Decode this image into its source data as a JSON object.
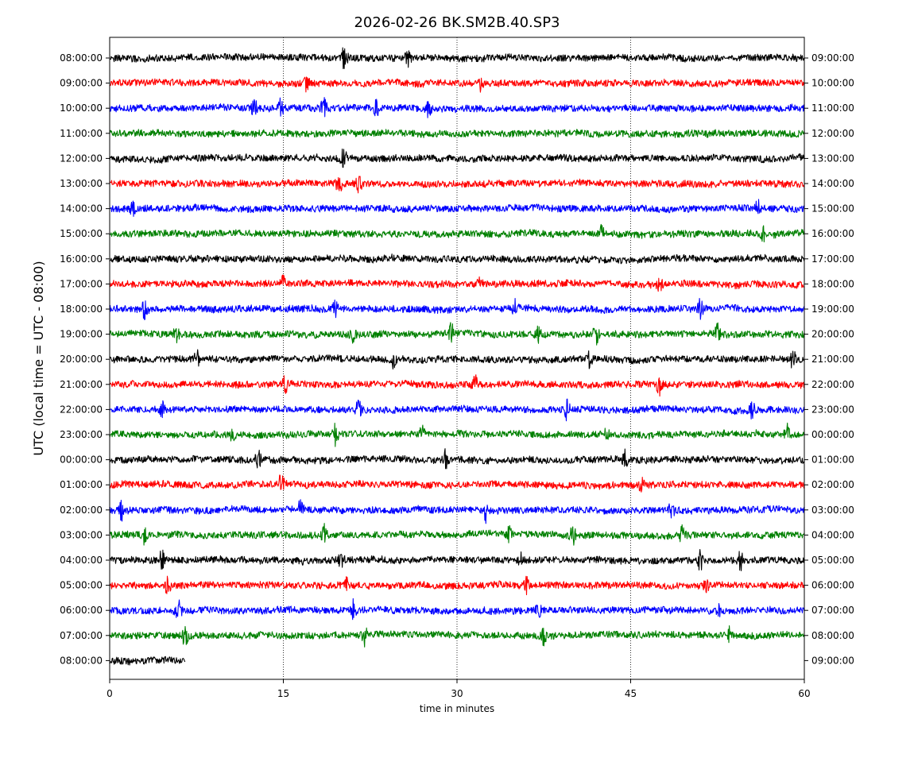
{
  "chart_data": {
    "type": "line",
    "title": "2026-02-26 BK.SM2B.40.SP3",
    "xlabel": "time in minutes",
    "ylabel": "UTC (local time = UTC - 08:00)",
    "xlim": [
      0,
      60
    ],
    "x_ticks": [
      0,
      15,
      30,
      45,
      60
    ],
    "x_tick_labels": [
      "0",
      "15",
      "30",
      "45",
      "60"
    ],
    "grid": "vertical dotted lines at 15, 30, 45 minutes",
    "colors": [
      "#000000",
      "#ff0000",
      "#0000ff",
      "#008000"
    ],
    "left_tick_labels": [
      "08:00:00",
      "09:00:00",
      "10:00:00",
      "11:00:00",
      "12:00:00",
      "13:00:00",
      "14:00:00",
      "15:00:00",
      "16:00:00",
      "17:00:00",
      "18:00:00",
      "19:00:00",
      "20:00:00",
      "21:00:00",
      "22:00:00",
      "23:00:00",
      "00:00:00",
      "01:00:00",
      "02:00:00",
      "03:00:00",
      "04:00:00",
      "05:00:00",
      "06:00:00",
      "07:00:00",
      "08:00:00"
    ],
    "right_tick_labels": [
      "09:00:00",
      "10:00:00",
      "11:00:00",
      "12:00:00",
      "13:00:00",
      "14:00:00",
      "15:00:00",
      "16:00:00",
      "17:00:00",
      "18:00:00",
      "19:00:00",
      "20:00:00",
      "21:00:00",
      "22:00:00",
      "23:00:00",
      "00:00:00",
      "01:00:00",
      "02:00:00",
      "03:00:00",
      "04:00:00",
      "05:00:00",
      "06:00:00",
      "07:00:00",
      "08:00:00",
      "09:00:00"
    ],
    "series": [
      {
        "hour": "08:00:00",
        "color": "#000000",
        "end_minute": 60,
        "events": [
          [
            20.3,
            3
          ],
          [
            25.8,
            2
          ]
        ]
      },
      {
        "hour": "09:00:00",
        "color": "#ff0000",
        "end_minute": 60,
        "events": [
          [
            17,
            1.5
          ],
          [
            32,
            1.5
          ]
        ]
      },
      {
        "hour": "10:00:00",
        "color": "#0000ff",
        "end_minute": 60,
        "events": [
          [
            12.5,
            2
          ],
          [
            14.8,
            2
          ],
          [
            18.5,
            2
          ],
          [
            23,
            1.5
          ],
          [
            27.5,
            1.5
          ]
        ]
      },
      {
        "hour": "11:00:00",
        "color": "#008000",
        "end_minute": 60,
        "events": []
      },
      {
        "hour": "12:00:00",
        "color": "#000000",
        "end_minute": 60,
        "events": [
          [
            20.2,
            2
          ]
        ]
      },
      {
        "hour": "13:00:00",
        "color": "#ff0000",
        "end_minute": 60,
        "events": [
          [
            19.8,
            2
          ],
          [
            21.5,
            2
          ]
        ]
      },
      {
        "hour": "14:00:00",
        "color": "#0000ff",
        "end_minute": 60,
        "events": [
          [
            2,
            1.5
          ],
          [
            56,
            1.5
          ]
        ]
      },
      {
        "hour": "15:00:00",
        "color": "#008000",
        "end_minute": 60,
        "events": [
          [
            42.5,
            1.5
          ],
          [
            56.5,
            1.5
          ]
        ]
      },
      {
        "hour": "16:00:00",
        "color": "#000000",
        "end_minute": 60,
        "events": []
      },
      {
        "hour": "17:00:00",
        "color": "#ff0000",
        "end_minute": 60,
        "events": [
          [
            15,
            1.5
          ],
          [
            32,
            1.5
          ],
          [
            47.5,
            1.5
          ]
        ]
      },
      {
        "hour": "18:00:00",
        "color": "#0000ff",
        "end_minute": 60,
        "events": [
          [
            3,
            2
          ],
          [
            19.5,
            1.5
          ],
          [
            35,
            1.5
          ],
          [
            51,
            2
          ]
        ]
      },
      {
        "hour": "19:00:00",
        "color": "#008000",
        "end_minute": 60,
        "events": [
          [
            5.8,
            2
          ],
          [
            21,
            2
          ],
          [
            29.5,
            2
          ],
          [
            37,
            1.5
          ],
          [
            42,
            2
          ],
          [
            52.5,
            2
          ]
        ]
      },
      {
        "hour": "20:00:00",
        "color": "#000000",
        "end_minute": 60,
        "events": [
          [
            7.5,
            2
          ],
          [
            24.5,
            1.5
          ],
          [
            41.5,
            2
          ],
          [
            59,
            2
          ]
        ]
      },
      {
        "hour": "21:00:00",
        "color": "#ff0000",
        "end_minute": 60,
        "events": [
          [
            15.2,
            2
          ],
          [
            31.5,
            2
          ],
          [
            47.5,
            2
          ]
        ]
      },
      {
        "hour": "22:00:00",
        "color": "#0000ff",
        "end_minute": 60,
        "events": [
          [
            4.5,
            2
          ],
          [
            21.5,
            2
          ],
          [
            39.5,
            2
          ],
          [
            55.5,
            2
          ]
        ]
      },
      {
        "hour": "23:00:00",
        "color": "#008000",
        "end_minute": 60,
        "events": [
          [
            10.5,
            2
          ],
          [
            19.5,
            2
          ],
          [
            27,
            2
          ],
          [
            43,
            2
          ],
          [
            58.5,
            2
          ]
        ]
      },
      {
        "hour": "00:00:00",
        "color": "#000000",
        "end_minute": 60,
        "events": [
          [
            12.8,
            2
          ],
          [
            29,
            2
          ],
          [
            44.5,
            2
          ]
        ]
      },
      {
        "hour": "01:00:00",
        "color": "#ff0000",
        "end_minute": 60,
        "events": [
          [
            14.8,
            2
          ],
          [
            46,
            1.5
          ]
        ]
      },
      {
        "hour": "02:00:00",
        "color": "#0000ff",
        "end_minute": 60,
        "events": [
          [
            1,
            2
          ],
          [
            16.5,
            2
          ],
          [
            32.5,
            2
          ],
          [
            48.5,
            2
          ]
        ]
      },
      {
        "hour": "03:00:00",
        "color": "#008000",
        "end_minute": 60,
        "events": [
          [
            3,
            2
          ],
          [
            18.5,
            2
          ],
          [
            34.5,
            1.5
          ],
          [
            40,
            2.5
          ],
          [
            49.5,
            2
          ]
        ]
      },
      {
        "hour": "04:00:00",
        "color": "#000000",
        "end_minute": 60,
        "events": [
          [
            4.5,
            2
          ],
          [
            20,
            1.5
          ],
          [
            35.5,
            1.5
          ],
          [
            51,
            2
          ],
          [
            54.5,
            2
          ]
        ]
      },
      {
        "hour": "05:00:00",
        "color": "#ff0000",
        "end_minute": 60,
        "events": [
          [
            5,
            1.5
          ],
          [
            20.5,
            1.5
          ],
          [
            36,
            1.5
          ],
          [
            51.5,
            1.5
          ]
        ]
      },
      {
        "hour": "06:00:00",
        "color": "#0000ff",
        "end_minute": 60,
        "events": [
          [
            6,
            2
          ],
          [
            21,
            2
          ],
          [
            37,
            1.5
          ],
          [
            52.5,
            1.5
          ]
        ]
      },
      {
        "hour": "07:00:00",
        "color": "#008000",
        "end_minute": 60,
        "events": [
          [
            6.5,
            2
          ],
          [
            22,
            2
          ],
          [
            37.5,
            2
          ],
          [
            53.5,
            2
          ]
        ]
      },
      {
        "hour": "08:00:00",
        "color": "#000000",
        "end_minute": 6.5,
        "events": []
      }
    ]
  }
}
